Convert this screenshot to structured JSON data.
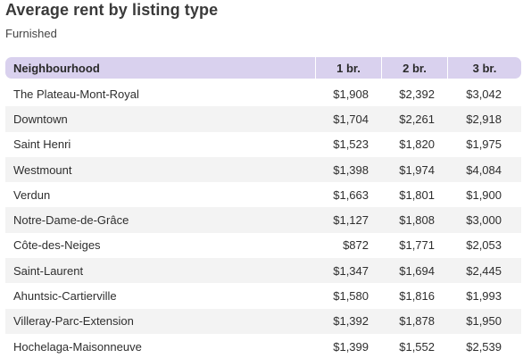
{
  "title": "Average rent by listing type",
  "subtitle": "Furnished",
  "table": {
    "headers": [
      "Neighbourhood",
      "1 br.",
      "2 br.",
      "3 br."
    ],
    "rows": [
      [
        "The Plateau-Mont-Royal",
        "$1,908",
        "$2,392",
        "$3,042"
      ],
      [
        "Downtown",
        "$1,704",
        "$2,261",
        "$2,918"
      ],
      [
        "Saint Henri",
        "$1,523",
        "$1,820",
        "$1,975"
      ],
      [
        "Westmount",
        "$1,398",
        "$1,974",
        "$4,084"
      ],
      [
        "Verdun",
        "$1,663",
        "$1,801",
        "$1,900"
      ],
      [
        "Notre-Dame-de-Grâce",
        "$1,127",
        "$1,808",
        "$3,000"
      ],
      [
        "Côte-des-Neiges",
        "$872",
        "$1,771",
        "$2,053"
      ],
      [
        "Saint-Laurent",
        "$1,347",
        "$1,694",
        "$2,445"
      ],
      [
        "Ahuntsic-Cartierville",
        "$1,580",
        "$1,816",
        "$1,993"
      ],
      [
        "Villeray-Parc-Extension",
        "$1,392",
        "$1,878",
        "$1,950"
      ],
      [
        "Hochelaga-Maisonneuve",
        "$1,399",
        "$1,552",
        "$2,539"
      ]
    ]
  },
  "colors": {
    "header_background": "#d9d1ee",
    "stripe_background": "#f3f3f3"
  }
}
